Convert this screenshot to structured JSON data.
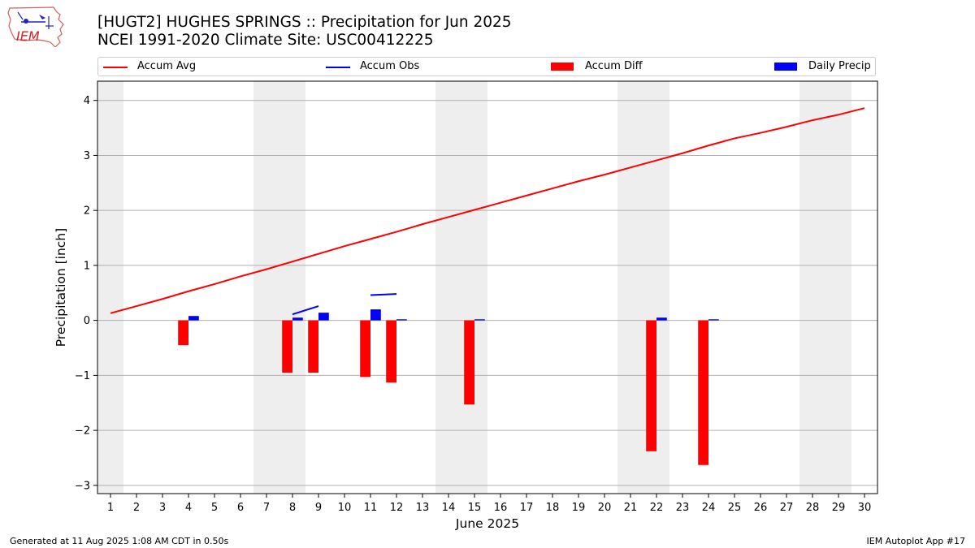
{
  "header": {
    "title_line1": "[HUGT2] HUGHES SPRINGS :: Precipitation for Jun 2025",
    "title_line2": "NCEI 1991-2020 Climate Site: USC00412225",
    "logo_text": "IEM"
  },
  "footer": {
    "generated": "Generated at 11 Aug 2025 1:08 AM CDT in 0.50s",
    "app": "IEM Autoplot App #17"
  },
  "colors": {
    "accum_avg": "#ff0000",
    "accum_obs": "#0000ff",
    "accum_diff": "#ff0000",
    "daily_precip": "#0000ff",
    "weekend_shade": "#eeeeee",
    "grid": "#b0b0b0"
  },
  "chart_data": {
    "type": "bar",
    "xlabel": "June 2025",
    "ylabel": "Precipitation [inch]",
    "xlim": [
      0.5,
      30.5
    ],
    "ylim": [
      -3.15,
      4.35
    ],
    "yticks": [
      -3,
      -2,
      -1,
      0,
      1,
      2,
      3,
      4
    ],
    "xticks": [
      1,
      2,
      3,
      4,
      5,
      6,
      7,
      8,
      9,
      10,
      11,
      12,
      13,
      14,
      15,
      16,
      17,
      18,
      19,
      20,
      21,
      22,
      23,
      24,
      25,
      26,
      27,
      28,
      29,
      30
    ],
    "grid": "horizontal",
    "legend_placement": "top",
    "weekend_days": [
      1,
      7,
      8,
      14,
      15,
      21,
      22,
      28,
      29
    ],
    "legend": [
      "Accum Avg",
      "Accum Obs",
      "Accum Diff",
      "Daily Precip"
    ],
    "series": [
      {
        "name": "Accum Avg",
        "type": "line",
        "x": [
          1,
          2,
          3,
          4,
          5,
          6,
          7,
          8,
          9,
          10,
          11,
          12,
          13,
          14,
          15,
          16,
          17,
          18,
          19,
          20,
          21,
          22,
          23,
          24,
          25,
          26,
          27,
          28,
          29,
          30
        ],
        "values": [
          0.13,
          0.26,
          0.39,
          0.53,
          0.66,
          0.8,
          0.93,
          1.07,
          1.21,
          1.35,
          1.48,
          1.61,
          1.75,
          1.88,
          2.01,
          2.14,
          2.27,
          2.4,
          2.53,
          2.65,
          2.78,
          2.91,
          3.04,
          3.18,
          3.31,
          3.41,
          3.52,
          3.64,
          3.74,
          3.86
        ]
      },
      {
        "name": "Accum Obs",
        "type": "line",
        "segments": [
          {
            "x": [
              8,
              9
            ],
            "values": [
              0.11,
              0.26
            ]
          },
          {
            "x": [
              11,
              12
            ],
            "values": [
              0.46,
              0.48
            ]
          }
        ]
      },
      {
        "name": "Accum Diff",
        "type": "bar",
        "x": [
          4,
          8,
          9,
          11,
          12,
          15,
          22,
          24
        ],
        "values": [
          -0.45,
          -0.95,
          -0.95,
          -1.03,
          -1.13,
          -1.53,
          -2.38,
          -2.63
        ]
      },
      {
        "name": "Daily Precip",
        "type": "bar",
        "x": [
          4,
          8,
          9,
          11,
          12,
          15,
          22,
          24
        ],
        "values": [
          0.08,
          0.05,
          0.14,
          0.2,
          0.02,
          0.02,
          0.05,
          0.02
        ]
      }
    ]
  }
}
